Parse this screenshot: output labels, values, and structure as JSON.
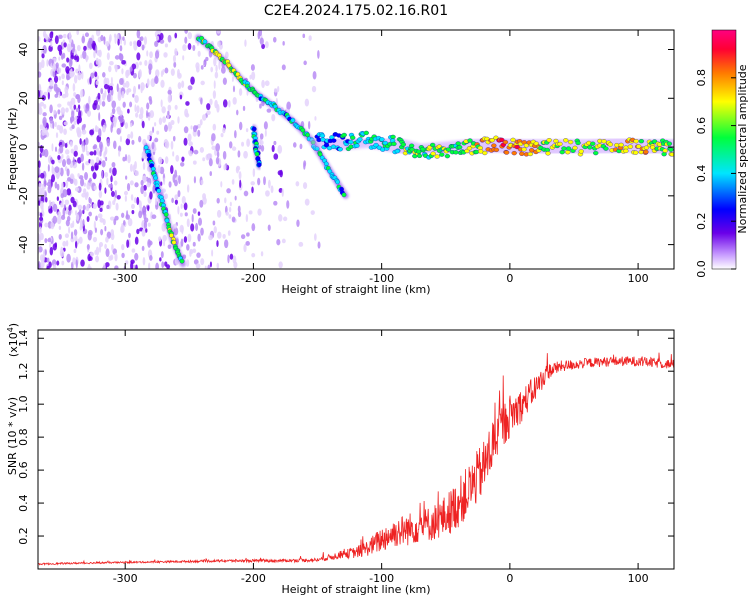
{
  "figure": {
    "title": "C2E4.2024.175.02.16.R01"
  },
  "chart_data": [
    {
      "type": "heatmap",
      "title": "C2E4.2024.175.02.16.R01",
      "xlabel": "Height of straight line (km)",
      "ylabel": "Frequency (Hz)",
      "xlim": [
        -368,
        128
      ],
      "ylim": [
        -50,
        48
      ],
      "xticks": [
        -300,
        -200,
        -100,
        0,
        100
      ],
      "xtick_labels": [
        "-300",
        "-200",
        "-100",
        "0",
        "100"
      ],
      "yticks": [
        -40,
        -20,
        0,
        20,
        40
      ],
      "ytick_labels": [
        "-40",
        "-20",
        "0",
        "20",
        "40"
      ],
      "colorbar": {
        "label": "Normalized spectral amplitude",
        "range": [
          0,
          1
        ],
        "ticks": [
          0,
          0.2,
          0.4,
          0.6,
          0.8
        ],
        "tick_labels": [
          "0.0",
          "0.2",
          "0.4",
          "0.6",
          "0.8"
        ],
        "colors": [
          "#ffffff",
          "#6a00e8",
          "#0000ff",
          "#00e5ff",
          "#00ff3c",
          "#ffff00",
          "#ff7a00",
          "#ff0033",
          "#ff0080"
        ]
      },
      "features": [
        {
          "name": "streak-upper",
          "x": [
            -243,
            -230,
            -220,
            -210,
            -198,
            -185,
            -170,
            -155,
            -140,
            -128
          ],
          "y": [
            45,
            39,
            34,
            28,
            22,
            17,
            11,
            3,
            -10,
            -20
          ],
          "level": [
            0.45,
            0.55,
            0.6,
            0.55,
            0.4,
            0.4,
            0.35,
            0.4,
            0.4,
            0.3
          ]
        },
        {
          "name": "streak-lower",
          "x": [
            -283,
            -277,
            -270,
            -263,
            -255
          ],
          "y": [
            0,
            -12,
            -25,
            -38,
            -48
          ],
          "level": [
            0.3,
            0.35,
            0.45,
            0.5,
            0.5
          ]
        },
        {
          "name": "streak-mid",
          "x": [
            -200,
            -198,
            -195
          ],
          "y": [
            8,
            0,
            -8
          ],
          "level": [
            0.3,
            0.35,
            0.3
          ]
        },
        {
          "name": "central-band",
          "x": [
            -150,
            -130,
            -110,
            -90,
            -70,
            -50,
            -30,
            -10,
            10,
            30,
            60,
            90,
            110,
            128
          ],
          "y": [
            3,
            2,
            3,
            1,
            -2,
            -1,
            0,
            1,
            0,
            0,
            0,
            1,
            0,
            0
          ],
          "level": [
            0.3,
            0.35,
            0.4,
            0.45,
            0.5,
            0.5,
            0.55,
            0.8,
            0.75,
            0.6,
            0.55,
            0.7,
            0.6,
            0.55
          ]
        }
      ]
    },
    {
      "type": "line",
      "xlabel": "Height of straight line (km)",
      "ylabel": "SNR (10 * v/v)",
      "yscale_label": "(x10",
      "yscale_exp": "4",
      "yscale_close": ")",
      "xlim": [
        -368,
        128
      ],
      "ylim": [
        0,
        14500
      ],
      "xticks": [
        -300,
        -200,
        -100,
        0,
        100
      ],
      "xtick_labels": [
        "-300",
        "-200",
        "-100",
        "0",
        "100"
      ],
      "yticks": [
        2000,
        4000,
        6000,
        8000,
        10000,
        12000,
        14000
      ],
      "ytick_labels": [
        "0.2",
        "0.4",
        "0.6",
        "0.8",
        "1.0",
        "1.2",
        "1.4"
      ],
      "color": "#ee2222",
      "series": [
        {
          "name": "SNR",
          "x": [
            -368,
            -340,
            -300,
            -260,
            -220,
            -180,
            -150,
            -130,
            -120,
            -110,
            -100,
            -90,
            -80,
            -70,
            -60,
            -50,
            -40,
            -30,
            -20,
            -15,
            -10,
            0,
            10,
            20,
            30,
            40,
            60,
            80,
            100,
            128
          ],
          "y": [
            300,
            350,
            400,
            450,
            500,
            500,
            550,
            900,
            1000,
            1300,
            1800,
            2200,
            2400,
            2600,
            2800,
            3200,
            4000,
            5000,
            6200,
            7200,
            8200,
            9300,
            10000,
            11000,
            12000,
            12300,
            12500,
            12600,
            12600,
            12400
          ],
          "noise": [
            50,
            50,
            50,
            60,
            80,
            80,
            120,
            250,
            350,
            500,
            800,
            900,
            1000,
            1000,
            1100,
            1300,
            1500,
            1600,
            1700,
            1700,
            1500,
            1300,
            1000,
            800,
            500,
            350,
            300,
            300,
            300,
            300
          ]
        }
      ]
    }
  ]
}
